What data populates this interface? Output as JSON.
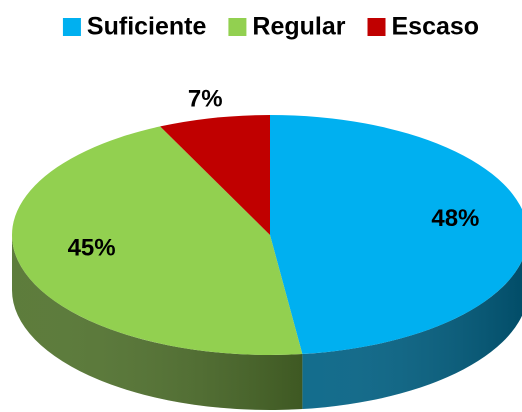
{
  "chart_data": {
    "type": "pie",
    "categories": [
      "Suficiente",
      "Regular",
      "Escaso"
    ],
    "values": [
      48,
      45,
      7
    ],
    "value_labels": [
      "48%",
      "45%",
      "7%"
    ],
    "colors": [
      "#00b0f0",
      "#92d050",
      "#c00000"
    ],
    "legend": "top"
  }
}
